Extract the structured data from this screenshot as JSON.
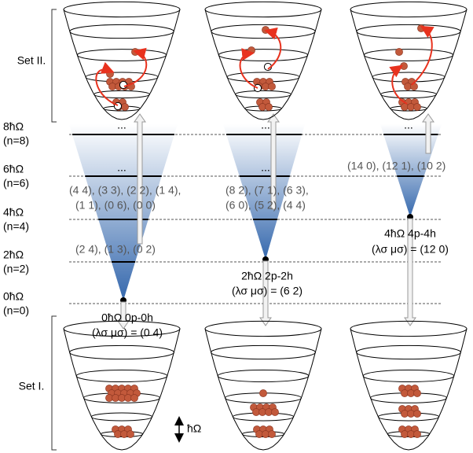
{
  "sets": {
    "upper": "Set II.",
    "lower": "Set I."
  },
  "levels": [
    {
      "energy": "8ħΩ",
      "n": "(n=8)"
    },
    {
      "energy": "6ħΩ",
      "n": "(n=6)"
    },
    {
      "energy": "4ħΩ",
      "n": "(n=4)"
    },
    {
      "energy": "2ħΩ",
      "n": "(n=2)"
    },
    {
      "energy": "0ħΩ",
      "n": "(n=0)"
    }
  ],
  "columns": [
    {
      "excitation": "0ħΩ 0p-0h",
      "irrep": "(λσ μσ) = (0 4)",
      "states": [
        "(4 4), (3 3), (2 2), (1 4),",
        "(1 1), (0 6), (0 0)",
        "(2 4), (1 3), (0 2)"
      ],
      "ellipses": [
        "...",
        "..."
      ]
    },
    {
      "excitation": "2ħΩ 2p-2h",
      "irrep": "(λσ μσ) = (6 2)",
      "states": [
        "(8 2), (7 1), (6 3),",
        "(6 0), (5 2), (4 4)"
      ],
      "ellipses": [
        "...",
        "..."
      ]
    },
    {
      "excitation": "4ħΩ 4p-4h",
      "irrep": "(λσ μσ) = (12 0)",
      "states": [
        "(14 0), (12 1), (10 2)"
      ],
      "ellipses": [
        "..."
      ]
    }
  ],
  "spacing_label": "ħΩ"
}
